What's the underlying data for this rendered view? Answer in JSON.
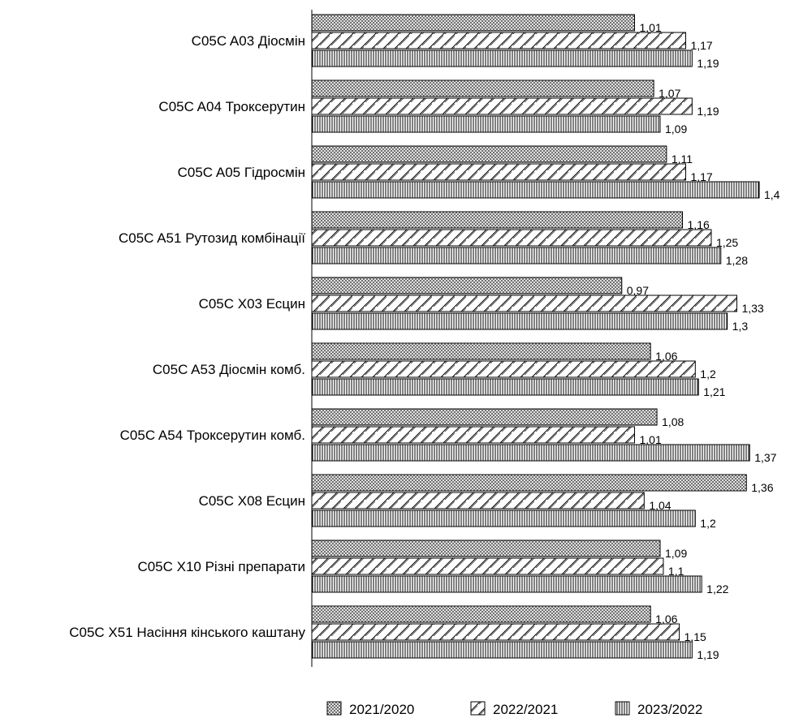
{
  "chart_data": {
    "type": "bar",
    "orientation": "horizontal",
    "categories": [
      "C05C A03 Діосмін",
      "C05C A04 Троксерутин",
      "C05C A05 Гідросмін",
      "C05C A51 Рутозид комбінації",
      "C05C X03 Есцин",
      "C05C A53 Діосмін комб.",
      "C05C A54 Троксерутин комб.",
      "C05C X08 Есцин",
      "C05C X10 Різні препарати",
      "C05C X51 Насіння кінського каштану"
    ],
    "series": [
      {
        "name": "2021/2020",
        "pattern": "crosshatch",
        "values": [
          1.01,
          1.07,
          1.11,
          1.16,
          0.97,
          1.06,
          1.08,
          1.36,
          1.09,
          1.06
        ],
        "labels": [
          "1,01",
          "1,07",
          "1,11",
          "1,16",
          "0,97",
          "1,06",
          "1,08",
          "1,36",
          "1,09",
          "1,06"
        ]
      },
      {
        "name": "2022/2021",
        "pattern": "diagonal",
        "values": [
          1.17,
          1.19,
          1.17,
          1.25,
          1.33,
          1.2,
          1.01,
          1.04,
          1.1,
          1.15
        ],
        "labels": [
          "1,17",
          "1,19",
          "1,17",
          "1,25",
          "1,33",
          "1,2",
          "1,01",
          "1,04",
          "1,1",
          "1,15"
        ]
      },
      {
        "name": "2023/2022",
        "pattern": "vertical",
        "values": [
          1.19,
          1.09,
          1.4,
          1.28,
          1.3,
          1.21,
          1.37,
          1.2,
          1.22,
          1.19
        ],
        "labels": [
          "1,19",
          "1,09",
          "1,4",
          "1,28",
          "1,3",
          "1,21",
          "1,37",
          "1,2",
          "1,22",
          "1,19"
        ]
      }
    ],
    "xlim": [
      0,
      1.4
    ],
    "grid": false,
    "legend_position": "bottom",
    "title": "",
    "xlabel": "",
    "ylabel": ""
  }
}
